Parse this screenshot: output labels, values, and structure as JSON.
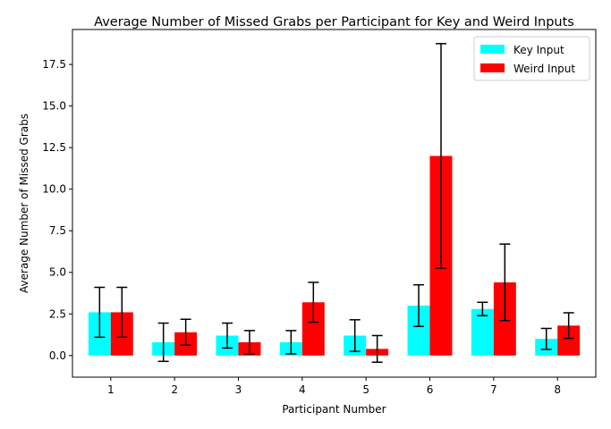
{
  "chart_data": {
    "type": "bar",
    "title": "Average Number of Missed Grabs per Participant for Key and Weird Inputs",
    "xlabel": "Participant Number",
    "ylabel": "Average Number of Missed Grabs",
    "categories": [
      "1",
      "2",
      "3",
      "4",
      "5",
      "6",
      "7",
      "8"
    ],
    "ylim": [
      -1.3,
      19.6
    ],
    "yticks": [
      0.0,
      2.5,
      5.0,
      7.5,
      10.0,
      12.5,
      15.0,
      17.5
    ],
    "ytick_labels": [
      "0.0",
      "2.5",
      "5.0",
      "7.5",
      "10.0",
      "12.5",
      "15.0",
      "17.5"
    ],
    "grid": false,
    "legend_position": "top-right",
    "series": [
      {
        "name": "Key Input",
        "color": "#00ffff",
        "values": [
          2.6,
          0.8,
          1.2,
          0.8,
          1.2,
          3.0,
          2.8,
          1.0
        ],
        "errors": [
          1.5,
          1.15,
          0.75,
          0.7,
          0.95,
          1.25,
          0.4,
          0.63
        ]
      },
      {
        "name": "Weird Input",
        "color": "#ff0000",
        "values": [
          2.6,
          1.4,
          0.8,
          3.2,
          0.4,
          12.0,
          4.4,
          1.8
        ],
        "errors": [
          1.5,
          0.78,
          0.7,
          1.2,
          0.8,
          6.75,
          2.3,
          0.77
        ]
      }
    ]
  }
}
